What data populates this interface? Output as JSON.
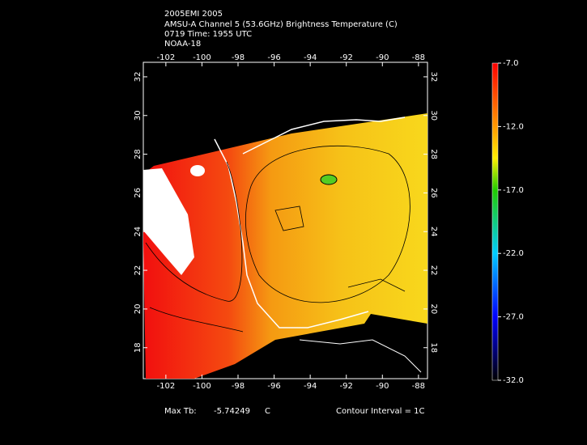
{
  "header": {
    "lines": [
      "2005EMI 2005",
      "AMSU-A Channel 5 (53.6GHz) Brightness Temperature (C)",
      "0719 Time: 1955 UTC",
      "NOAA-18"
    ]
  },
  "map": {
    "xlim": [
      -103.25,
      -87.5
    ],
    "ylim": [
      16.4,
      32.75
    ],
    "xticks": [
      -102,
      -100,
      -98,
      -96,
      -94,
      -92,
      -90,
      -88
    ],
    "yticks": [
      18,
      20,
      22,
      24,
      26,
      28,
      30,
      32
    ]
  },
  "colorbar": {
    "lim": [
      -32,
      -7
    ],
    "ticks": [
      {
        "value": -7,
        "label": "-7.0"
      },
      {
        "value": -12,
        "label": "-12.0"
      },
      {
        "value": -17,
        "label": "-17.0"
      },
      {
        "value": -22,
        "label": "-22.0"
      },
      {
        "value": -27,
        "label": "-27.0"
      },
      {
        "value": -32,
        "label": "-32.0"
      }
    ]
  },
  "footer": {
    "max_label": "Max Tb:",
    "max_value": -5.74249,
    "unit": "C",
    "contour": "Contour Interval = 1C"
  }
}
